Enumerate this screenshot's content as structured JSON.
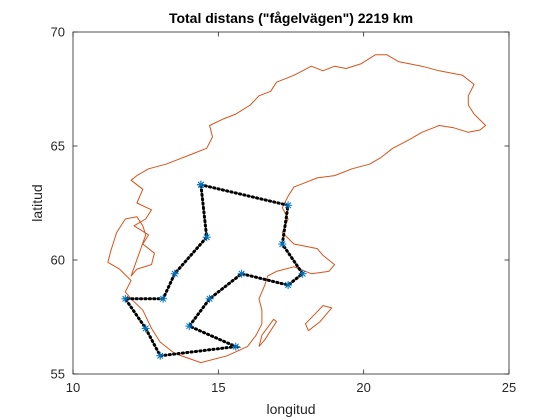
{
  "chart_data": {
    "type": "line",
    "title": "Total distans (\"fågelvägen\") 2219 km",
    "xlabel": "longitud",
    "ylabel": "latitud",
    "xlim": [
      10,
      25
    ],
    "ylim": [
      55,
      70
    ],
    "xticks": [
      10,
      15,
      20,
      25
    ],
    "yticks": [
      55,
      60,
      65,
      70
    ],
    "grid": false,
    "legend": "none",
    "colors": {
      "route": "#000000",
      "marker": "#0072BD",
      "outline": "#D95319",
      "axes": "#262626"
    },
    "series": [
      {
        "role": "route",
        "style": "dotted",
        "marker": "asterisk",
        "x": [
          14.4,
          17.4,
          17.2,
          17.9,
          17.4,
          15.8,
          14.7,
          14.0,
          15.6,
          13.0,
          12.5,
          11.8,
          13.1,
          13.5,
          14.6,
          14.4
        ],
        "y": [
          63.3,
          62.4,
          60.7,
          59.4,
          58.9,
          59.4,
          58.3,
          57.1,
          56.2,
          55.8,
          57.0,
          58.3,
          58.3,
          59.4,
          61.0,
          63.3
        ]
      },
      {
        "role": "outline",
        "style": "solid",
        "marker": "none",
        "x": [
          12.5,
          12.4,
          12.2,
          11.8,
          11.5,
          11.3,
          11.2,
          11.6,
          12.0,
          11.8,
          12.0,
          12.4,
          12.7,
          13.0,
          13.5,
          14.4,
          15.3,
          16.0,
          16.3,
          16.5,
          16.5,
          16.4,
          16.6,
          16.7,
          17.0,
          17.6,
          18.2,
          18.8,
          19.0,
          18.6,
          18.4,
          18.0,
          17.6,
          17.2,
          17.4,
          17.2,
          17.4,
          17.6,
          17.8,
          18.4,
          19.0,
          19.6,
          20.2,
          20.6,
          21.0,
          21.6,
          22.0,
          22.4,
          22.6,
          23.1,
          23.6,
          24.0,
          24.2,
          23.8,
          23.6,
          23.6,
          23.8,
          23.4,
          22.6,
          22.0,
          21.2,
          20.8,
          20.4,
          19.9,
          19.4,
          19.0,
          18.6,
          18.2,
          17.6,
          17.0,
          16.8,
          16.4,
          16.1,
          15.6,
          15.2,
          14.7,
          14.8,
          14.6,
          14.0,
          13.6,
          13.2,
          12.6,
          12.2,
          12.0,
          12.4,
          12.2,
          12.7,
          12.5,
          12.1,
          12.6,
          12.4,
          12.8,
          12.7,
          12.2,
          12.0,
          12.5
        ],
        "y": [
          61.1,
          61.5,
          61.9,
          61.8,
          61.2,
          60.4,
          59.9,
          59.6,
          59.1,
          58.6,
          58.3,
          57.8,
          57.0,
          56.4,
          55.9,
          55.5,
          55.8,
          56.2,
          56.7,
          57.2,
          57.8,
          58.3,
          58.9,
          59.3,
          59.5,
          59.7,
          59.4,
          59.5,
          59.8,
          60.2,
          60.5,
          60.6,
          60.7,
          61.2,
          61.8,
          62.3,
          62.8,
          63.2,
          63.3,
          63.6,
          63.7,
          64.0,
          64.2,
          64.5,
          64.9,
          65.3,
          65.6,
          65.8,
          65.9,
          65.8,
          65.6,
          65.7,
          65.9,
          66.4,
          66.8,
          67.2,
          67.7,
          68.1,
          68.3,
          68.5,
          68.7,
          69.0,
          69.0,
          68.6,
          68.4,
          68.5,
          68.3,
          68.5,
          68.1,
          67.8,
          67.4,
          67.2,
          66.8,
          66.4,
          66.2,
          65.9,
          65.4,
          64.9,
          64.6,
          64.4,
          64.2,
          64.0,
          63.7,
          63.5,
          63.1,
          62.5,
          62.2,
          61.8,
          61.5,
          61.1,
          60.7,
          60.3,
          59.8,
          59.6,
          59.3,
          61.1
        ]
      },
      {
        "role": "outline",
        "style": "solid",
        "marker": "none",
        "x": [
          18.1,
          18.5,
          18.9,
          18.6,
          18.3,
          18.0,
          18.1
        ],
        "y": [
          56.9,
          57.3,
          57.9,
          58.0,
          57.6,
          57.2,
          56.9
        ]
      },
      {
        "role": "outline",
        "style": "solid",
        "marker": "none",
        "x": [
          16.4,
          16.6,
          17.0,
          16.9,
          16.5,
          16.4
        ],
        "y": [
          56.2,
          56.5,
          57.3,
          57.4,
          56.7,
          56.2
        ]
      }
    ]
  }
}
